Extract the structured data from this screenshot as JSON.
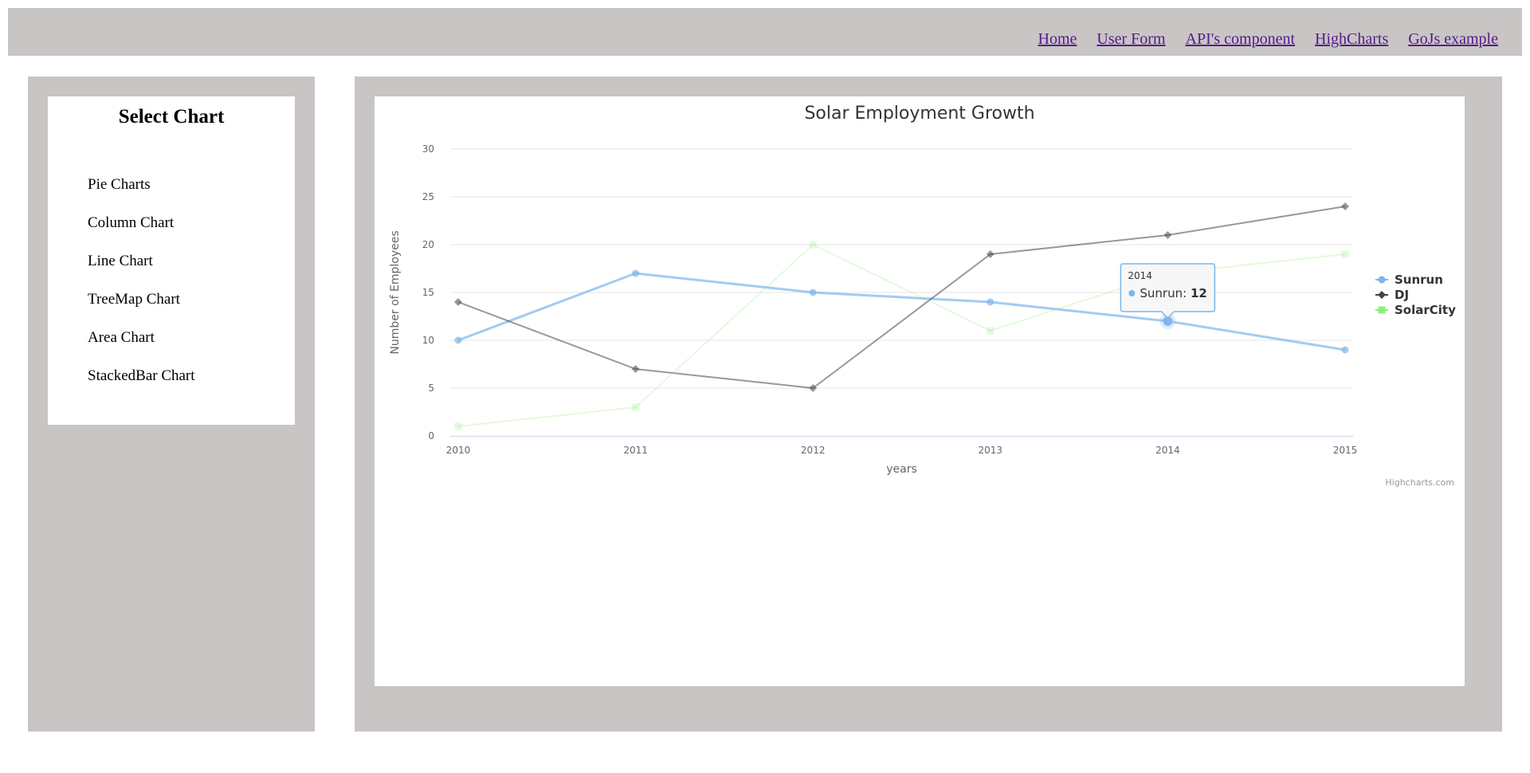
{
  "nav": {
    "links": [
      "Home",
      "User Form",
      "API's component",
      "HighCharts",
      "GoJs example"
    ]
  },
  "sidebar": {
    "title": "Select Chart",
    "items": [
      "Pie Charts",
      "Column Chart",
      "Line Chart",
      "TreeMap Chart",
      "Area Chart",
      "StackedBar Chart"
    ]
  },
  "chart_data": {
    "type": "line",
    "title": "Solar Employment Growth",
    "xlabel": "years",
    "ylabel": "Number of Employees",
    "x": [
      2010,
      2011,
      2012,
      2013,
      2014,
      2015
    ],
    "ylim": [
      0,
      30
    ],
    "yticks": [
      0,
      5,
      10,
      15,
      20,
      25,
      30
    ],
    "grid": true,
    "legend": "right",
    "credits": "Highcharts.com",
    "series": [
      {
        "name": "Sunrun",
        "values": [
          10,
          17,
          15,
          14,
          12,
          9
        ],
        "color": "#7cb5ec",
        "marker": "circle"
      },
      {
        "name": "DJ",
        "values": [
          14,
          7,
          5,
          19,
          21,
          24
        ],
        "color": "#434348",
        "marker": "diamond"
      },
      {
        "name": "SolarCity",
        "values": [
          1,
          3,
          20,
          11,
          17,
          19
        ],
        "color": "#90ed7d",
        "marker": "square"
      }
    ],
    "tooltip": {
      "header": "2014",
      "series": "Sunrun",
      "value": "12"
    }
  }
}
